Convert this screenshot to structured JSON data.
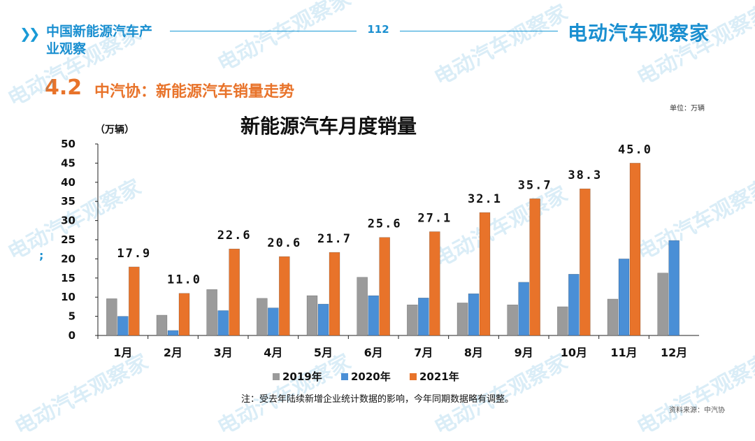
{
  "header": {
    "brand_left": "中国新能源汽车产业观察",
    "page_number": "112",
    "brand_right": "电动汽车观察家"
  },
  "section": {
    "number": "4.2",
    "title": "中汽协：新能源汽车销量走势"
  },
  "unit_note": "单位：万辆",
  "footnote": "注：受去年陆续新增企业统计数据的影响，今年同期数据略有调整。",
  "source": "资料来源：中汽协",
  "watermark": "电动汽车观察家",
  "side_mark": ";",
  "colors": {
    "accent_blue": "#1a8fd0",
    "accent_orange": "#e8732a",
    "series_2019": "#9b9b9b",
    "series_2020": "#4a8fd6",
    "series_2021": "#e8732a"
  },
  "chart_data": {
    "type": "bar",
    "title": "新能源汽车月度销量",
    "ylabel": "（万辆）",
    "xlabel": "",
    "ylim": [
      0,
      50
    ],
    "yticks": [
      0,
      5,
      10,
      15,
      20,
      25,
      30,
      35,
      40,
      45,
      50
    ],
    "categories": [
      "1月",
      "2月",
      "3月",
      "4月",
      "5月",
      "6月",
      "7月",
      "8月",
      "9月",
      "10月",
      "11月",
      "12月"
    ],
    "series": [
      {
        "name": "2019年",
        "values": [
          9.6,
          5.3,
          12.0,
          9.7,
          10.4,
          15.2,
          8.0,
          8.5,
          8.0,
          7.5,
          9.5,
          16.3
        ]
      },
      {
        "name": "2020年",
        "values": [
          5.0,
          1.3,
          6.5,
          7.2,
          8.2,
          10.4,
          9.8,
          10.9,
          13.9,
          16.0,
          20.0,
          24.8
        ]
      },
      {
        "name": "2021年",
        "values": [
          17.9,
          11.0,
          22.6,
          20.6,
          21.7,
          25.6,
          27.1,
          32.1,
          35.7,
          38.3,
          45.0,
          null
        ]
      }
    ],
    "data_labels": [
      "17.9",
      "11.0",
      "22.6",
      "20.6",
      "21.7",
      "25.6",
      "27.1",
      "32.1",
      "35.7",
      "38.3",
      "45.0"
    ],
    "grid": false,
    "legend_position": "bottom"
  }
}
